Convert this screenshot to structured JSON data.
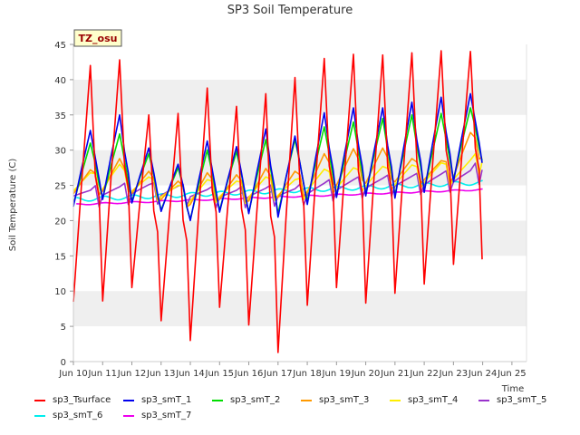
{
  "chart_data": {
    "type": "line",
    "title": "SP3 Soil Temperature",
    "xlabel": "Time",
    "ylabel": "Soil Temperature (C)",
    "tag_label": "TZ_osu",
    "xlim": [
      9.5,
      25.0
    ],
    "ylim": [
      0,
      45
    ],
    "yticks": [
      0,
      5,
      10,
      15,
      20,
      25,
      30,
      35,
      40,
      45
    ],
    "xticks": [
      {
        "value": 9.5,
        "label": "Jun 10"
      },
      {
        "value": 10.5,
        "label": "Jun 11"
      },
      {
        "value": 11.5,
        "label": "Jun 12"
      },
      {
        "value": 12.5,
        "label": "Jun 13"
      },
      {
        "value": 13.5,
        "label": "Jun 14"
      },
      {
        "value": 14.5,
        "label": "Jun 15"
      },
      {
        "value": 15.5,
        "label": "Jun 16"
      },
      {
        "value": 16.5,
        "label": "Jun 17"
      },
      {
        "value": 17.5,
        "label": "Jun 18"
      },
      {
        "value": 18.5,
        "label": "Jun 19"
      },
      {
        "value": 19.5,
        "label": "Jun 20"
      },
      {
        "value": 20.5,
        "label": "Jun 21"
      },
      {
        "value": 21.5,
        "label": "Jun 22"
      },
      {
        "value": 22.5,
        "label": "Jun 23"
      },
      {
        "value": 23.5,
        "label": "Jun 24"
      },
      {
        "value": 24.5,
        "label": "Jun 25"
      }
    ],
    "grid": "horizontal bands",
    "daily": {
      "days": [
        10,
        11,
        12,
        13,
        14,
        15,
        16,
        17,
        18,
        19,
        20,
        21,
        22,
        23,
        24
      ],
      "sp3_Tsurface": {
        "max": [
          42,
          42.8,
          35,
          35.2,
          38.8,
          36.2,
          38,
          40.3,
          43,
          43.6,
          43.5,
          43.8,
          44.1,
          44,
          null
        ],
        "min": [
          8.5,
          8.6,
          10.5,
          5.8,
          3,
          7.7,
          5.2,
          1.3,
          8,
          10.5,
          8.3,
          9.7,
          11,
          13.8,
          14.5
        ]
      },
      "sp3_smT_1": {
        "max": [
          32.8,
          35,
          30.3,
          28,
          31.3,
          30.5,
          33,
          32,
          35.3,
          36,
          36,
          36.8,
          37.5,
          38,
          null
        ],
        "min": [
          22,
          23,
          22.5,
          21.3,
          20,
          21.2,
          21,
          20.5,
          22.3,
          23.3,
          23.5,
          23.2,
          24,
          25.5,
          28.2
        ]
      },
      "sp3_smT_2": {
        "max": [
          31,
          32.3,
          29.5,
          27.5,
          30,
          29.8,
          31.5,
          31.5,
          33.3,
          34,
          34.5,
          35,
          35.2,
          36,
          null
        ],
        "min": [
          22.3,
          23.2,
          22.8,
          21.5,
          20.2,
          21.5,
          21.2,
          21,
          22.8,
          23.5,
          23.8,
          23.6,
          24.2,
          25.8,
          28.5
        ]
      },
      "sp3_smT_3": {
        "max": [
          27.2,
          28.8,
          27,
          25.6,
          26.8,
          26.5,
          27.4,
          27,
          29.5,
          30.2,
          30.3,
          28.8,
          28.5,
          32.5,
          null
        ],
        "min": [
          23.8,
          24.2,
          23.9,
          23,
          22.3,
          23,
          22.8,
          23.3,
          24,
          25,
          25.3,
          25.5,
          25.8,
          26.2,
          29
        ]
      },
      "sp3_smT_4": {
        "max": [
          26.8,
          28,
          26.2,
          25,
          25.8,
          25.6,
          26.2,
          25.8,
          27.3,
          27.5,
          27.7,
          27.9,
          28.2,
          28.6,
          null
        ],
        "min": [
          24.2,
          24.5,
          24.2,
          23.4,
          22.8,
          23.4,
          23.3,
          23.6,
          24.2,
          24.6,
          24.9,
          25.1,
          25.4,
          25.8,
          28.4
        ]
      },
      "sp3_smT_5": {
        "max": [
          24.3,
          24.8,
          25.1,
          24.9,
          24.4,
          24.3,
          24.6,
          24.5,
          25.3,
          25.8,
          26,
          26.3,
          26.6,
          27.1,
          null
        ],
        "min": [
          23.5,
          23.6,
          23.8,
          23.6,
          23.4,
          23.3,
          23.4,
          23.5,
          23.8,
          24.3,
          24.6,
          24.9,
          25.1,
          25.5,
          27.2
        ]
      },
      "sp3_smT_6": {
        "start": 23.0,
        "end": 25.4,
        "amplitude": 0.3
      },
      "sp3_smT_7": {
        "start": 22.3,
        "end": 24.4,
        "amplitude": 0.1
      }
    },
    "series": [
      {
        "name": "sp3_Tsurface",
        "color": "#ff0000"
      },
      {
        "name": "sp3_smT_1",
        "color": "#0000ee"
      },
      {
        "name": "sp3_smT_2",
        "color": "#00dd00"
      },
      {
        "name": "sp3_smT_3",
        "color": "#ff9900"
      },
      {
        "name": "sp3_smT_4",
        "color": "#ffee00"
      },
      {
        "name": "sp3_smT_5",
        "color": "#9933cc"
      },
      {
        "name": "sp3_smT_6",
        "color": "#00eeee"
      },
      {
        "name": "sp3_smT_7",
        "color": "#ee00ee"
      }
    ]
  }
}
